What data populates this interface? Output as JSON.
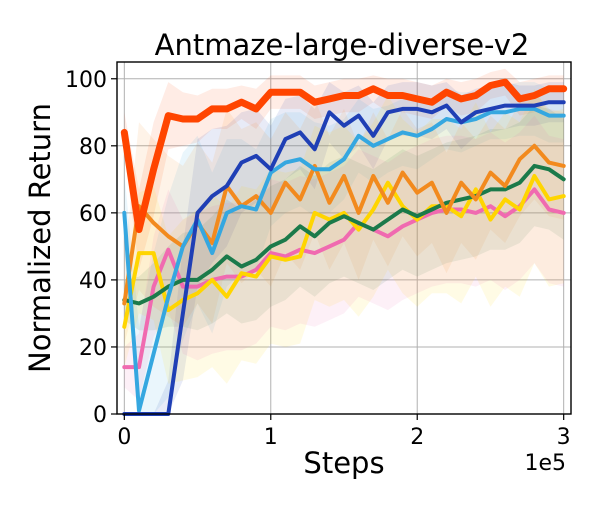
{
  "chart_data": {
    "type": "line",
    "title": "Antmaze-large-diverse-v2",
    "xlabel": "Steps",
    "ylabel": "Normalized Return",
    "x_offset_label": "1e5",
    "xlim": [
      -0.05,
      3.05
    ],
    "ylim": [
      0,
      105
    ],
    "xticks": [
      0,
      1,
      2,
      3
    ],
    "yticks": [
      0,
      20,
      40,
      60,
      80,
      100
    ],
    "grid": true,
    "legend": "none",
    "x": [
      0,
      0.1,
      0.2,
      0.3,
      0.4,
      0.5,
      0.6,
      0.7,
      0.8,
      0.9,
      1.0,
      1.1,
      1.2,
      1.3,
      1.4,
      1.5,
      1.6,
      1.7,
      1.8,
      1.9,
      2.0,
      2.1,
      2.2,
      2.3,
      2.4,
      2.5,
      2.6,
      2.7,
      2.8,
      2.9,
      3.0
    ],
    "series": [
      {
        "name": "orange-red",
        "color": "#ff4500",
        "width": 7,
        "values": [
          84,
          55,
          73,
          89,
          88,
          88,
          91,
          91,
          93,
          91,
          96,
          96,
          96,
          93,
          94,
          95,
          95,
          97,
          95,
          95,
          94,
          93,
          96,
          94,
          95,
          98,
          99,
          94,
          95,
          97,
          97
        ],
        "band": [
          6,
          12,
          14,
          10,
          8,
          7,
          6,
          6,
          5,
          6,
          5,
          5,
          5,
          5,
          5,
          5,
          5,
          4,
          5,
          5,
          5,
          5,
          4,
          5,
          5,
          4,
          4,
          5,
          5,
          4,
          4
        ]
      },
      {
        "name": "navy",
        "color": "#1f3fb5",
        "width": 4,
        "values": [
          0,
          0,
          0,
          0,
          30,
          60,
          65,
          68,
          75,
          77,
          73,
          82,
          84,
          79,
          90,
          86,
          89,
          83,
          90,
          91,
          91,
          90,
          92,
          87,
          90,
          91,
          92,
          92,
          92,
          93,
          93
        ],
        "band": [
          0,
          0,
          0,
          10,
          20,
          22,
          20,
          18,
          15,
          14,
          13,
          12,
          11,
          12,
          9,
          10,
          9,
          10,
          8,
          8,
          8,
          8,
          7,
          8,
          7,
          7,
          7,
          6,
          6,
          6,
          6
        ]
      },
      {
        "name": "sky-blue",
        "color": "#35a7e0",
        "width": 4,
        "values": [
          60,
          1,
          18,
          35,
          50,
          58,
          48,
          60,
          62,
          61,
          72,
          75,
          76,
          73,
          73,
          76,
          83,
          80,
          82,
          84,
          83,
          85,
          88,
          87,
          88,
          90,
          90,
          91,
          91,
          89,
          89
        ],
        "band": [
          12,
          25,
          30,
          30,
          28,
          25,
          24,
          22,
          20,
          18,
          16,
          15,
          14,
          14,
          13,
          12,
          11,
          11,
          10,
          10,
          10,
          9,
          9,
          9,
          8,
          8,
          8,
          8,
          8,
          8,
          8
        ]
      },
      {
        "name": "orange",
        "color": "#f28a1e",
        "width": 4,
        "values": [
          33,
          62,
          57,
          53,
          50,
          57,
          51,
          68,
          62,
          65,
          60,
          69,
          64,
          74,
          63,
          71,
          60,
          71,
          63,
          72,
          66,
          69,
          60,
          69,
          64,
          72,
          68,
          76,
          80,
          75,
          74
        ],
        "band": [
          12,
          25,
          25,
          24,
          24,
          24,
          24,
          23,
          23,
          22,
          22,
          21,
          21,
          20,
          20,
          20,
          20,
          19,
          19,
          19,
          19,
          18,
          18,
          18,
          18,
          17,
          17,
          17,
          16,
          16,
          16
        ]
      },
      {
        "name": "green",
        "color": "#1b7a4a",
        "width": 4,
        "values": [
          34,
          33,
          35,
          38,
          40,
          40,
          43,
          47,
          44,
          46,
          50,
          52,
          56,
          53,
          57,
          59,
          57,
          55,
          58,
          61,
          59,
          61,
          63,
          64,
          65,
          67,
          67,
          69,
          74,
          73,
          70
        ],
        "band": [
          6,
          8,
          10,
          12,
          14,
          15,
          16,
          17,
          17,
          18,
          18,
          18,
          18,
          18,
          18,
          18,
          18,
          18,
          18,
          18,
          18,
          18,
          18,
          18,
          18,
          18,
          18,
          18,
          18,
          18,
          18
        ]
      },
      {
        "name": "yellow",
        "color": "#ffd500",
        "width": 4,
        "values": [
          26,
          48,
          48,
          31,
          34,
          36,
          40,
          35,
          42,
          41,
          47,
          46,
          47,
          60,
          58,
          60,
          55,
          61,
          69,
          62,
          58,
          62,
          62,
          59,
          67,
          58,
          64,
          61,
          71,
          64,
          65
        ],
        "band": [
          12,
          18,
          20,
          22,
          24,
          25,
          26,
          26,
          26,
          26,
          26,
          26,
          26,
          26,
          26,
          26,
          26,
          26,
          26,
          26,
          26,
          26,
          26,
          26,
          26,
          26,
          26,
          26,
          26,
          26,
          26
        ]
      },
      {
        "name": "pink",
        "color": "#f06ab0",
        "width": 4,
        "values": [
          14,
          14,
          38,
          49,
          38,
          38,
          40,
          41,
          41,
          43,
          48,
          47,
          49,
          48,
          50,
          52,
          57,
          55,
          53,
          56,
          58,
          60,
          61,
          61,
          60,
          62,
          59,
          62,
          67,
          61,
          60
        ],
        "band": [
          6,
          10,
          15,
          18,
          20,
          22,
          22,
          22,
          22,
          22,
          22,
          22,
          22,
          22,
          22,
          22,
          22,
          22,
          22,
          22,
          22,
          22,
          22,
          22,
          22,
          22,
          22,
          22,
          22,
          22,
          22
        ]
      }
    ]
  }
}
